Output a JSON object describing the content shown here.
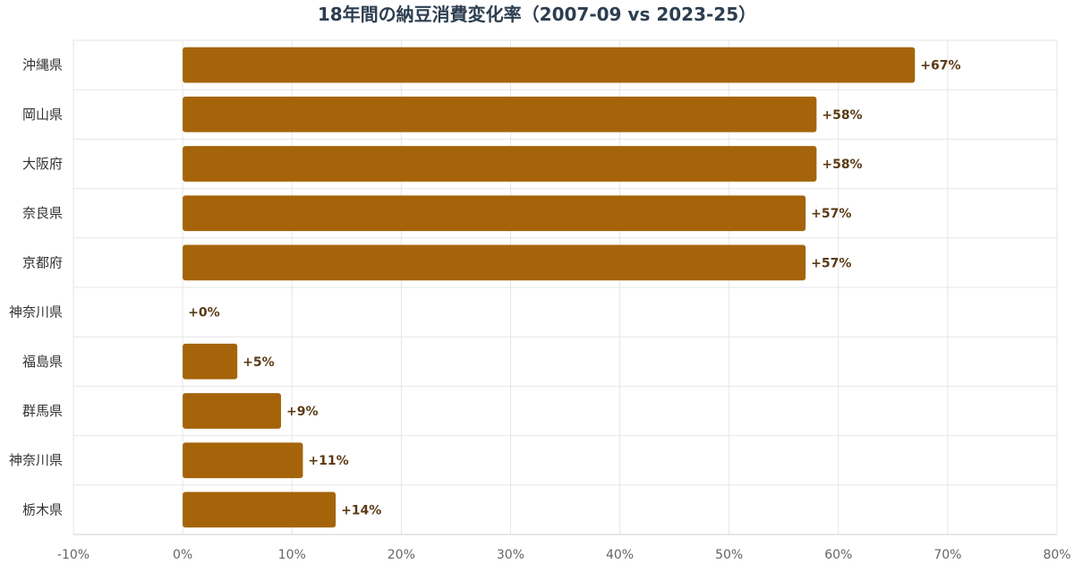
{
  "chart_data": {
    "type": "bar",
    "orientation": "horizontal",
    "title": "18年間の納豆消費変化率（2007-09 vs 2023-25）",
    "xlabel": "",
    "ylabel": "",
    "categories": [
      "沖縄県",
      "岡山県",
      "大阪府",
      "奈良県",
      "京都府",
      "神奈川県",
      "福島県",
      "群馬県",
      "神奈川県",
      "栃木県"
    ],
    "values": [
      67,
      58,
      58,
      57,
      57,
      0,
      5,
      9,
      11,
      14
    ],
    "value_labels": [
      "+67%",
      "+58%",
      "+58%",
      "+57%",
      "+57%",
      "+0%",
      "+5%",
      "+9%",
      "+11%",
      "+14%"
    ],
    "xlim": [
      -10,
      80
    ],
    "x_ticks": [
      -10,
      0,
      10,
      20,
      30,
      40,
      50,
      60,
      70,
      80
    ],
    "x_tick_labels": [
      "-10%",
      "0%",
      "10%",
      "20%",
      "30%",
      "40%",
      "50%",
      "60%",
      "70%",
      "80%"
    ],
    "grid": true,
    "legend": "none",
    "bar_color": "#a5640a",
    "label_color": "#5a3a14"
  }
}
